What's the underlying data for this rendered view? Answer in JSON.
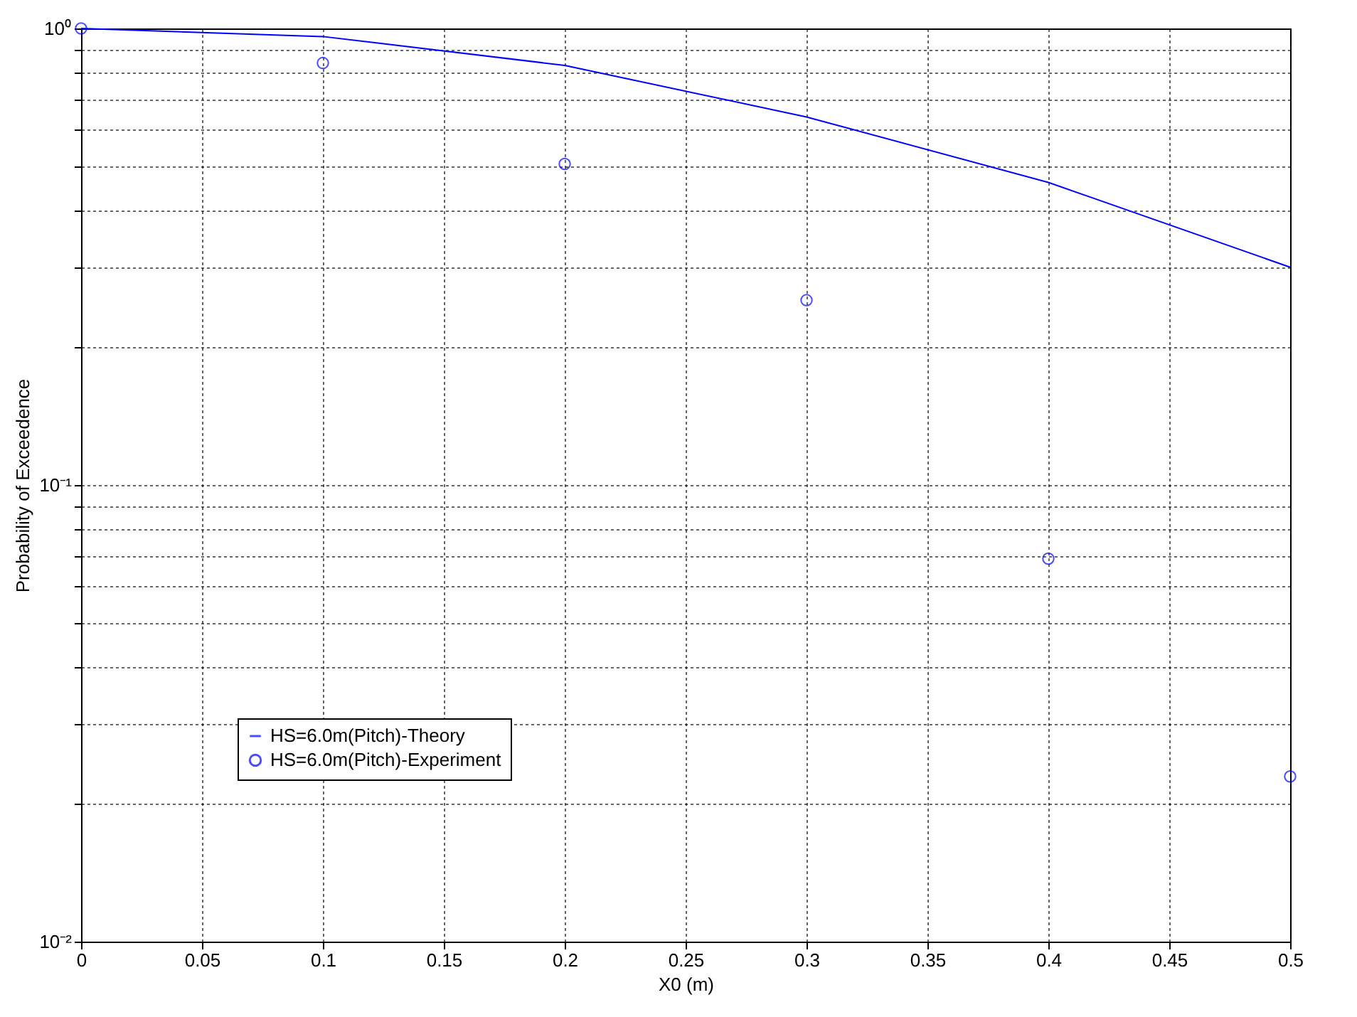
{
  "chart_data": {
    "type": "line",
    "xlabel": "X0 (m)",
    "ylabel": "Probability of Exceedence",
    "log": "y",
    "grid": true,
    "legend": "bottom left",
    "xlim": [
      0,
      0.5
    ],
    "xticks": [
      0,
      0.05,
      0.1,
      0.15,
      0.2,
      0.25,
      0.3,
      0.35,
      0.4,
      0.45,
      0.5
    ],
    "ylim": [
      0.01,
      1
    ],
    "yticks": [
      {
        "value": 0.01,
        "label": "10⁻²"
      },
      {
        "value": 0.02,
        "label": null
      },
      {
        "value": 0.03,
        "label": null
      },
      {
        "value": 0.04,
        "label": null
      },
      {
        "value": 0.05,
        "label": null
      },
      {
        "value": 0.06,
        "label": null
      },
      {
        "value": 0.07,
        "label": null
      },
      {
        "value": 0.08,
        "label": null
      },
      {
        "value": 0.09,
        "label": null
      },
      {
        "value": 0.1,
        "label": "10⁻¹"
      },
      {
        "value": 0.2,
        "label": null
      },
      {
        "value": 0.3,
        "label": null
      },
      {
        "value": 0.4,
        "label": null
      },
      {
        "value": 0.5,
        "label": null
      },
      {
        "value": 0.6,
        "label": null
      },
      {
        "value": 0.7,
        "label": null
      },
      {
        "value": 0.8,
        "label": null
      },
      {
        "value": 0.9,
        "label": null
      },
      {
        "value": 1,
        "label": "10⁰"
      }
    ],
    "x": [
      0,
      0.1,
      0.2,
      0.3,
      0.4,
      0.5
    ],
    "series": [
      {
        "name": "HS=6.0m(Pitch)-Theory",
        "color": "#0000ff",
        "marker": "none",
        "line_style": "solid",
        "values": [
          1.0,
          0.96,
          0.83,
          0.64,
          0.46,
          0.3
        ]
      },
      {
        "name": "HS=6.0m(Pitch)-Experiment",
        "type": "scatter",
        "color": "#0000ff",
        "marker": "circle",
        "values": [
          1.0,
          0.84,
          0.505,
          0.254,
          0.069,
          0.023
        ]
      }
    ]
  }
}
